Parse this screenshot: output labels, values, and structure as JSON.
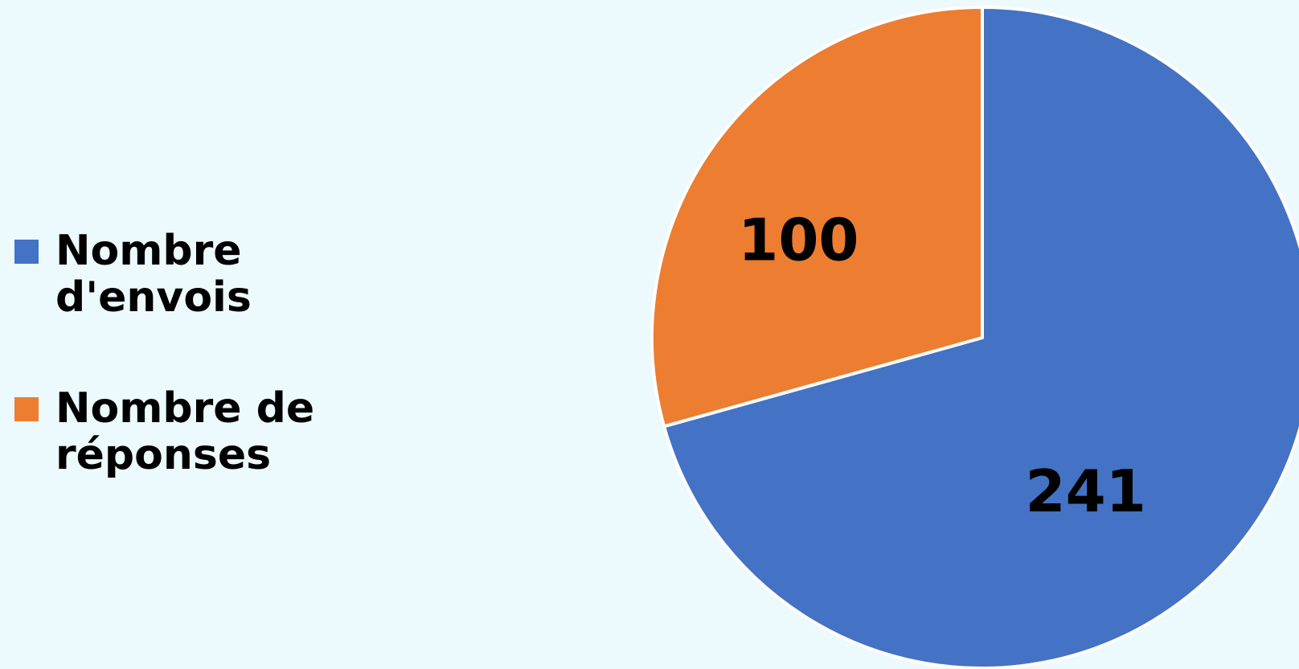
{
  "chart_data": {
    "type": "pie",
    "categories": [
      "Nombre d'envois",
      "Nombre de réponses"
    ],
    "values": [
      241,
      100
    ],
    "data_labels": [
      "241",
      "100"
    ],
    "colors": [
      "#4472c4",
      "#ed7d31"
    ],
    "start": "12 o'clock",
    "direction": "clockwise",
    "legend_position": "left"
  },
  "legend": {
    "items": [
      {
        "label": "Nombre d'envois",
        "color": "#4472c4"
      },
      {
        "label": "Nombre de réponses",
        "color": "#ed7d31"
      }
    ]
  },
  "background": "#ecf9fd"
}
